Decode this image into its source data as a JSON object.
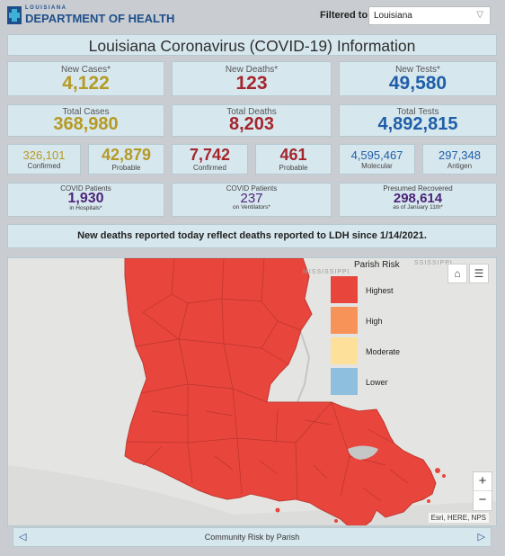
{
  "header": {
    "logo_small": "LOUISIANA",
    "logo_big": "DEPARTMENT OF HEALTH",
    "filter_label": "Filtered to:",
    "filter_value": "Louisiana"
  },
  "title": "Louisiana Coronavirus (COVID-19) Information",
  "row1": {
    "new_cases": {
      "label": "New Cases*",
      "value": "4,122"
    },
    "new_deaths": {
      "label": "New Deaths*",
      "value": "123"
    },
    "new_tests": {
      "label": "New Tests*",
      "value": "49,580"
    }
  },
  "row2": {
    "total_cases": {
      "label": "Total Cases",
      "value": "368,980"
    },
    "total_deaths": {
      "label": "Total Deaths",
      "value": "8,203"
    },
    "total_tests": {
      "label": "Total Tests",
      "value": "4,892,815"
    }
  },
  "row3": {
    "cases_confirmed": {
      "value": "326,101",
      "label": "Confirmed"
    },
    "cases_probable": {
      "value": "42,879",
      "label": "Probable"
    },
    "deaths_confirmed": {
      "value": "7,742",
      "label": "Confirmed"
    },
    "deaths_probable": {
      "value": "461",
      "label": "Probable"
    },
    "tests_molecular": {
      "value": "4,595,467",
      "label": "Molecular"
    },
    "tests_antigen": {
      "value": "297,348",
      "label": "Antigen"
    }
  },
  "row4": {
    "hospital": {
      "label": "COVID Patients",
      "value": "1,930",
      "sub": "in Hospitals*"
    },
    "ventilator": {
      "label": "COVID Patients",
      "value": "237",
      "sub": "on Ventilators*"
    },
    "recovered": {
      "label": "Presumed Recovered",
      "value": "298,614",
      "sub": "as of January 11th*"
    }
  },
  "notice": "New deaths reported today reflect deaths reported to LDH since 1/14/2021.",
  "map": {
    "legend_title": "Parish Risk",
    "legend": [
      {
        "label": "Highest",
        "color": "#e8453c"
      },
      {
        "label": "High",
        "color": "#f79358"
      },
      {
        "label": "Moderate",
        "color": "#fde09a"
      },
      {
        "label": "Lower",
        "color": "#8fbfde"
      }
    ],
    "water_label_left": "MISSISSIPPI",
    "water_label_right": "SSISSIPPI",
    "zoom_in": "+",
    "zoom_out": "−",
    "attribution": "Esri, HERE, NPS",
    "colors": {
      "parish_fill": "#e8453c",
      "parish_stroke": "#c13a32",
      "water": "#c4c7c6",
      "land": "#e4e5e2"
    }
  },
  "footer": {
    "label": "Community Risk by Parish",
    "prev": "◁",
    "next": "▷"
  }
}
